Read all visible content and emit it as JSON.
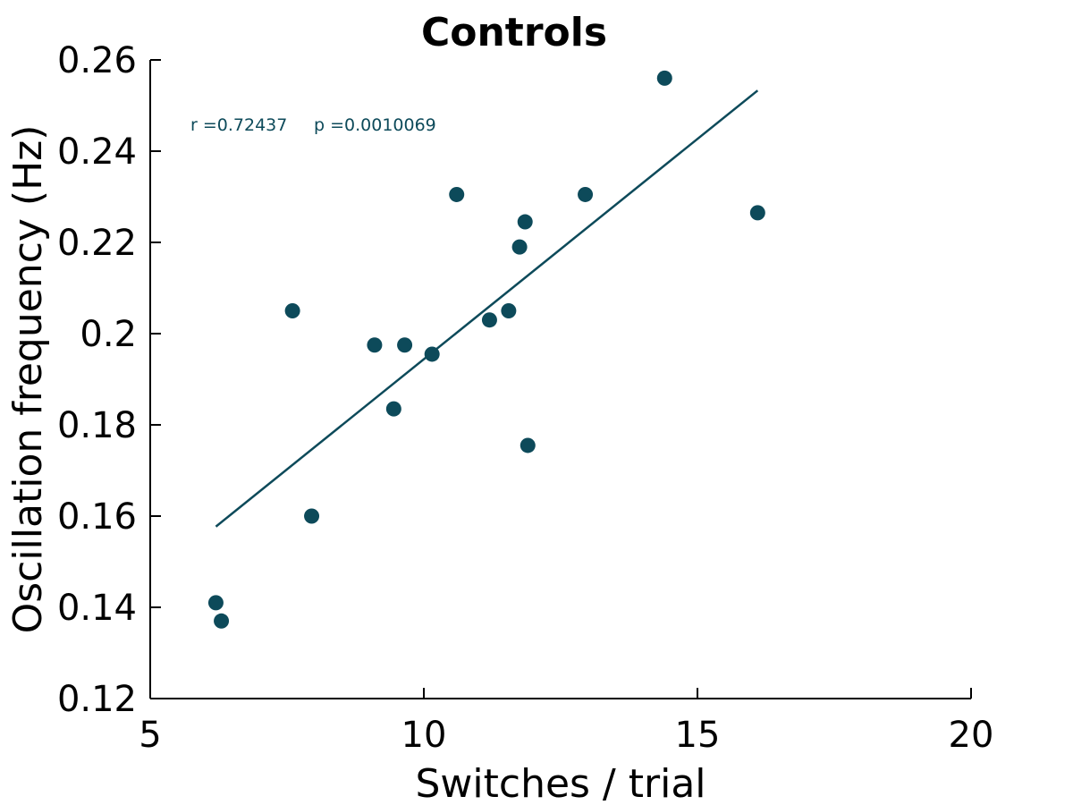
{
  "chart_data": {
    "type": "scatter",
    "title": "Controls",
    "xlabel": "Switches / trial",
    "ylabel": "Oscillation frequency (Hz)",
    "xlim": [
      5,
      20
    ],
    "ylim": [
      0.12,
      0.26
    ],
    "xticks": [
      5,
      10,
      15,
      20
    ],
    "xtick_labels": [
      "5",
      "10",
      "15",
      "20"
    ],
    "yticks": [
      0.12,
      0.14,
      0.16,
      0.18,
      0.2,
      0.22,
      0.24,
      0.26
    ],
    "ytick_labels": [
      "0.12",
      "0.14",
      "0.16",
      "0.18",
      "0.2",
      "0.22",
      "0.24",
      "0.26"
    ],
    "grid": false,
    "point_color": "#0d4a5a",
    "series": [
      {
        "points": [
          {
            "x": 6.2,
            "y": 0.141
          },
          {
            "x": 6.3,
            "y": 0.137
          },
          {
            "x": 7.6,
            "y": 0.205
          },
          {
            "x": 7.95,
            "y": 0.16
          },
          {
            "x": 9.1,
            "y": 0.1975
          },
          {
            "x": 9.45,
            "y": 0.1835
          },
          {
            "x": 9.65,
            "y": 0.1975
          },
          {
            "x": 10.15,
            "y": 0.1955
          },
          {
            "x": 10.6,
            "y": 0.2305
          },
          {
            "x": 11.2,
            "y": 0.203
          },
          {
            "x": 11.55,
            "y": 0.205
          },
          {
            "x": 11.75,
            "y": 0.219
          },
          {
            "x": 11.85,
            "y": 0.2245
          },
          {
            "x": 11.9,
            "y": 0.1755
          },
          {
            "x": 12.95,
            "y": 0.2305
          },
          {
            "x": 14.4,
            "y": 0.256
          },
          {
            "x": 16.1,
            "y": 0.2265
          }
        ]
      }
    ],
    "fit_line": {
      "x": [
        6.2,
        16.1
      ],
      "y": [
        0.1577,
        0.2533
      ]
    },
    "annotation": {
      "r_text": "r =0.72437",
      "p_text": "p =0.0010069",
      "position": "top-left"
    }
  }
}
